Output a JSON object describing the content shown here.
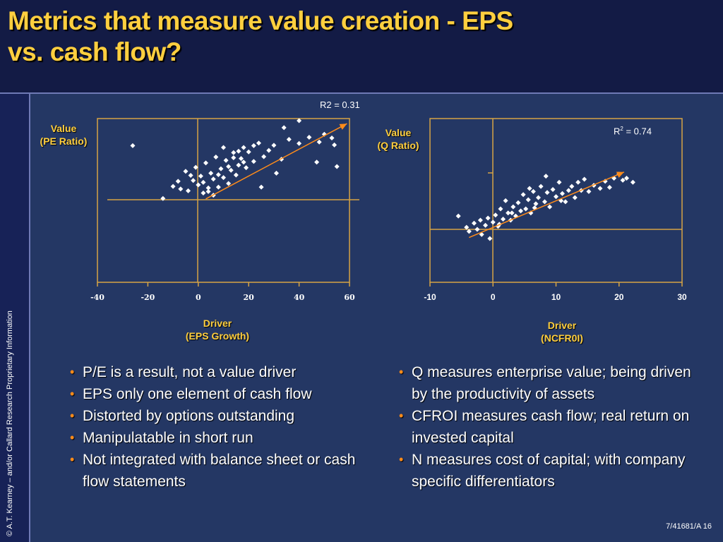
{
  "slide": {
    "title_line1": "Metrics that measure value creation - EPS",
    "title_line2": "vs. cash flow?",
    "sidebar_text": "© A.T. Kearney – and/or Callard Research Proprietary Information",
    "footer": "7/41681/A  16"
  },
  "left_chart": {
    "r2_label": "R2 = 0.31",
    "y_title_1": "Value",
    "y_title_2": "(PE Ratio)",
    "x_title_1": "Driver",
    "x_title_2": "(EPS Growth)",
    "x_ticks": [
      "-40",
      "-20",
      "0",
      "20",
      "40",
      "60"
    ]
  },
  "right_chart": {
    "r2_prefix": "R",
    "r2_sup": "2",
    "r2_suffix": " = 0.74",
    "y_title_1": "Value",
    "y_title_2": "(Q Ratio)",
    "x_title_1": "Driver",
    "x_title_2": "(NCFR0I)",
    "x_ticks": [
      "-10",
      "0",
      "10",
      "20",
      "30"
    ]
  },
  "chart_data": [
    {
      "type": "scatter",
      "title": "",
      "xlabel": "Driver (EPS Growth)",
      "ylabel": "Value (PE Ratio)",
      "xlim": [
        -40,
        60
      ],
      "annotation": "R2 = 0.31",
      "trend_line": {
        "from": [
          3,
          1.0
        ],
        "to": [
          59,
          21.5
        ]
      },
      "points": [
        [
          -26,
          15.5
        ],
        [
          -14,
          1.1
        ],
        [
          -10,
          4.4
        ],
        [
          -8,
          5.8
        ],
        [
          -7,
          3.7
        ],
        [
          -5,
          8.5
        ],
        [
          -4,
          3.2
        ],
        [
          -3,
          7.4
        ],
        [
          -2,
          6.0
        ],
        [
          -1,
          9.6
        ],
        [
          0,
          4.8
        ],
        [
          1,
          7.2
        ],
        [
          2,
          5.5
        ],
        [
          3,
          10.8
        ],
        [
          4,
          3.0
        ],
        [
          5,
          8.0
        ],
        [
          6,
          6.4
        ],
        [
          7,
          12.4
        ],
        [
          8,
          4.2
        ],
        [
          9,
          9.2
        ],
        [
          10,
          6.8
        ],
        [
          11,
          11.5
        ],
        [
          12,
          5.2
        ],
        [
          13,
          8.8
        ],
        [
          14,
          13.6
        ],
        [
          15,
          7.5
        ],
        [
          16,
          10.2
        ],
        [
          17,
          12.0
        ],
        [
          18,
          15.0
        ],
        [
          19,
          9.5
        ],
        [
          20,
          13.8
        ],
        [
          22,
          11.2
        ],
        [
          24,
          16.2
        ],
        [
          25,
          4.2
        ],
        [
          26,
          12.5
        ],
        [
          28,
          14.2
        ],
        [
          30,
          15.6
        ],
        [
          31,
          8.0
        ],
        [
          33,
          11.8
        ],
        [
          34,
          20.4
        ],
        [
          36,
          17.2
        ],
        [
          40,
          16.1
        ],
        [
          40,
          22.3
        ],
        [
          44,
          17.8
        ],
        [
          48,
          16.5
        ],
        [
          50,
          18.6
        ],
        [
          53,
          17.6
        ],
        [
          54,
          15.7
        ],
        [
          47,
          11.0
        ],
        [
          55,
          9.8
        ],
        [
          4,
          4.0
        ],
        [
          2,
          2.6
        ],
        [
          6,
          2.0
        ],
        [
          8,
          7.6
        ],
        [
          12,
          9.8
        ],
        [
          16,
          14.0
        ],
        [
          18,
          11.0
        ],
        [
          22,
          15.5
        ],
        [
          10,
          15.0
        ],
        [
          14,
          12.2
        ]
      ]
    },
    {
      "type": "scatter",
      "title": "",
      "xlabel": "Driver (NCFR0I)",
      "ylabel": "Value (Q Ratio)",
      "xlim": [
        -10,
        30
      ],
      "annotation": "R² = 0.74",
      "trend_line": {
        "from": [
          -3.8,
          -0.8
        ],
        "to": [
          20.8,
          5.6
        ]
      },
      "points": [
        [
          -5.5,
          1.3
        ],
        [
          -4.2,
          0.2
        ],
        [
          -3.8,
          -0.2
        ],
        [
          -3.0,
          0.6
        ],
        [
          -2.5,
          0.0
        ],
        [
          -2.0,
          0.9
        ],
        [
          -1.8,
          -0.5
        ],
        [
          -1.2,
          0.4
        ],
        [
          -0.8,
          1.1
        ],
        [
          -0.5,
          -0.9
        ],
        [
          0.0,
          0.7
        ],
        [
          0.4,
          1.4
        ],
        [
          0.8,
          0.3
        ],
        [
          1.2,
          2.0
        ],
        [
          1.6,
          1.0
        ],
        [
          2.0,
          2.8
        ],
        [
          2.4,
          1.6
        ],
        [
          2.8,
          0.9
        ],
        [
          3.2,
          2.2
        ],
        [
          3.6,
          1.3
        ],
        [
          4.0,
          2.6
        ],
        [
          4.4,
          1.8
        ],
        [
          4.8,
          3.4
        ],
        [
          5.2,
          2.0
        ],
        [
          5.6,
          2.9
        ],
        [
          6.0,
          1.6
        ],
        [
          6.4,
          3.7
        ],
        [
          6.8,
          2.5
        ],
        [
          7.2,
          3.1
        ],
        [
          7.6,
          4.2
        ],
        [
          8.2,
          2.7
        ],
        [
          8.6,
          3.6
        ],
        [
          9.0,
          2.2
        ],
        [
          9.5,
          3.9
        ],
        [
          10.0,
          3.2
        ],
        [
          10.5,
          4.6
        ],
        [
          11.0,
          3.5
        ],
        [
          11.5,
          2.7
        ],
        [
          12.0,
          3.8
        ],
        [
          12.5,
          4.2
        ],
        [
          13.0,
          3.1
        ],
        [
          13.5,
          4.6
        ],
        [
          14.0,
          3.8
        ],
        [
          14.5,
          4.9
        ],
        [
          15.2,
          3.7
        ],
        [
          16.0,
          4.3
        ],
        [
          17.0,
          4.0
        ],
        [
          17.8,
          4.7
        ],
        [
          18.5,
          4.1
        ],
        [
          19.2,
          5.0
        ],
        [
          20.0,
          5.4
        ],
        [
          20.6,
          4.8
        ],
        [
          21.2,
          5.0
        ],
        [
          22.2,
          4.6
        ],
        [
          8.4,
          5.2
        ],
        [
          5.8,
          4.0
        ],
        [
          1.0,
          0.5
        ],
        [
          3.0,
          1.6
        ],
        [
          6.6,
          2.1
        ],
        [
          10.8,
          2.8
        ]
      ]
    }
  ],
  "bullets_left": [
    "P/E is a result, not a value driver",
    "EPS only one element of cash flow",
    "Distorted by options outstanding",
    "Manipulatable in short run",
    "Not integrated with balance sheet or cash flow statements"
  ],
  "bullets_right": [
    "Q measures enterprise value; being driven by the productivity of assets",
    "CFROI measures cash flow; real return on invested capital",
    "N measures cost of capital; with company specific differentiators"
  ],
  "colors": {
    "background": "#243764",
    "header": "#131b45",
    "title": "#ffcf3f",
    "axis": "#d6a445",
    "bullet": "#ff8c1a"
  }
}
